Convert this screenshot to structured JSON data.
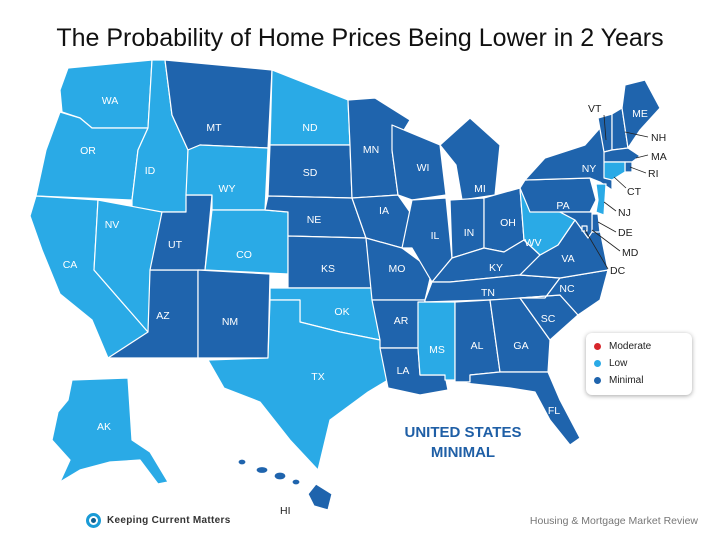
{
  "title": "The Probability of Home Prices Being Lower in 2 Years",
  "colors": {
    "moderate": "#d7262b",
    "low": "#2aaae6",
    "minimal": "#1f64ad"
  },
  "legend": [
    {
      "label": "Moderate",
      "level": "moderate"
    },
    {
      "label": "Low",
      "level": "low"
    },
    {
      "label": "Minimal",
      "level": "minimal"
    }
  ],
  "summary": {
    "line1": "UNITED STATES",
    "line2": "MINIMAL"
  },
  "brand": {
    "name": "Keeping Current Matters",
    "icon": "kcm-logo-icon"
  },
  "source": "Housing & Mortgage Market Review",
  "states": [
    {
      "code": "WA",
      "level": "low"
    },
    {
      "code": "OR",
      "level": "low"
    },
    {
      "code": "CA",
      "level": "low"
    },
    {
      "code": "ID",
      "level": "low"
    },
    {
      "code": "NV",
      "level": "low"
    },
    {
      "code": "AZ",
      "level": "minimal"
    },
    {
      "code": "UT",
      "level": "minimal"
    },
    {
      "code": "MT",
      "level": "minimal"
    },
    {
      "code": "WY",
      "level": "low"
    },
    {
      "code": "CO",
      "level": "low"
    },
    {
      "code": "NM",
      "level": "minimal"
    },
    {
      "code": "ND",
      "level": "low"
    },
    {
      "code": "SD",
      "level": "minimal"
    },
    {
      "code": "NE",
      "level": "minimal"
    },
    {
      "code": "KS",
      "level": "minimal"
    },
    {
      "code": "OK",
      "level": "low"
    },
    {
      "code": "TX",
      "level": "low"
    },
    {
      "code": "MN",
      "level": "minimal"
    },
    {
      "code": "IA",
      "level": "minimal"
    },
    {
      "code": "MO",
      "level": "minimal"
    },
    {
      "code": "AR",
      "level": "minimal"
    },
    {
      "code": "LA",
      "level": "minimal"
    },
    {
      "code": "WI",
      "level": "minimal"
    },
    {
      "code": "IL",
      "level": "minimal"
    },
    {
      "code": "MI",
      "level": "minimal"
    },
    {
      "code": "IN",
      "level": "minimal"
    },
    {
      "code": "OH",
      "level": "minimal"
    },
    {
      "code": "KY",
      "level": "minimal"
    },
    {
      "code": "TN",
      "level": "minimal"
    },
    {
      "code": "MS",
      "level": "low"
    },
    {
      "code": "AL",
      "level": "minimal"
    },
    {
      "code": "GA",
      "level": "minimal"
    },
    {
      "code": "FL",
      "level": "minimal"
    },
    {
      "code": "SC",
      "level": "minimal"
    },
    {
      "code": "NC",
      "level": "minimal"
    },
    {
      "code": "VA",
      "level": "minimal"
    },
    {
      "code": "WV",
      "level": "low"
    },
    {
      "code": "PA",
      "level": "minimal"
    },
    {
      "code": "NY",
      "level": "minimal"
    },
    {
      "code": "VT",
      "level": "minimal"
    },
    {
      "code": "NH",
      "level": "minimal"
    },
    {
      "code": "ME",
      "level": "minimal"
    },
    {
      "code": "MA",
      "level": "minimal"
    },
    {
      "code": "RI",
      "level": "minimal"
    },
    {
      "code": "CT",
      "level": "low"
    },
    {
      "code": "NJ",
      "level": "low"
    },
    {
      "code": "DE",
      "level": "minimal"
    },
    {
      "code": "MD",
      "level": "minimal"
    },
    {
      "code": "DC",
      "level": "minimal"
    },
    {
      "code": "AK",
      "level": "low"
    },
    {
      "code": "HI",
      "level": "minimal"
    }
  ]
}
